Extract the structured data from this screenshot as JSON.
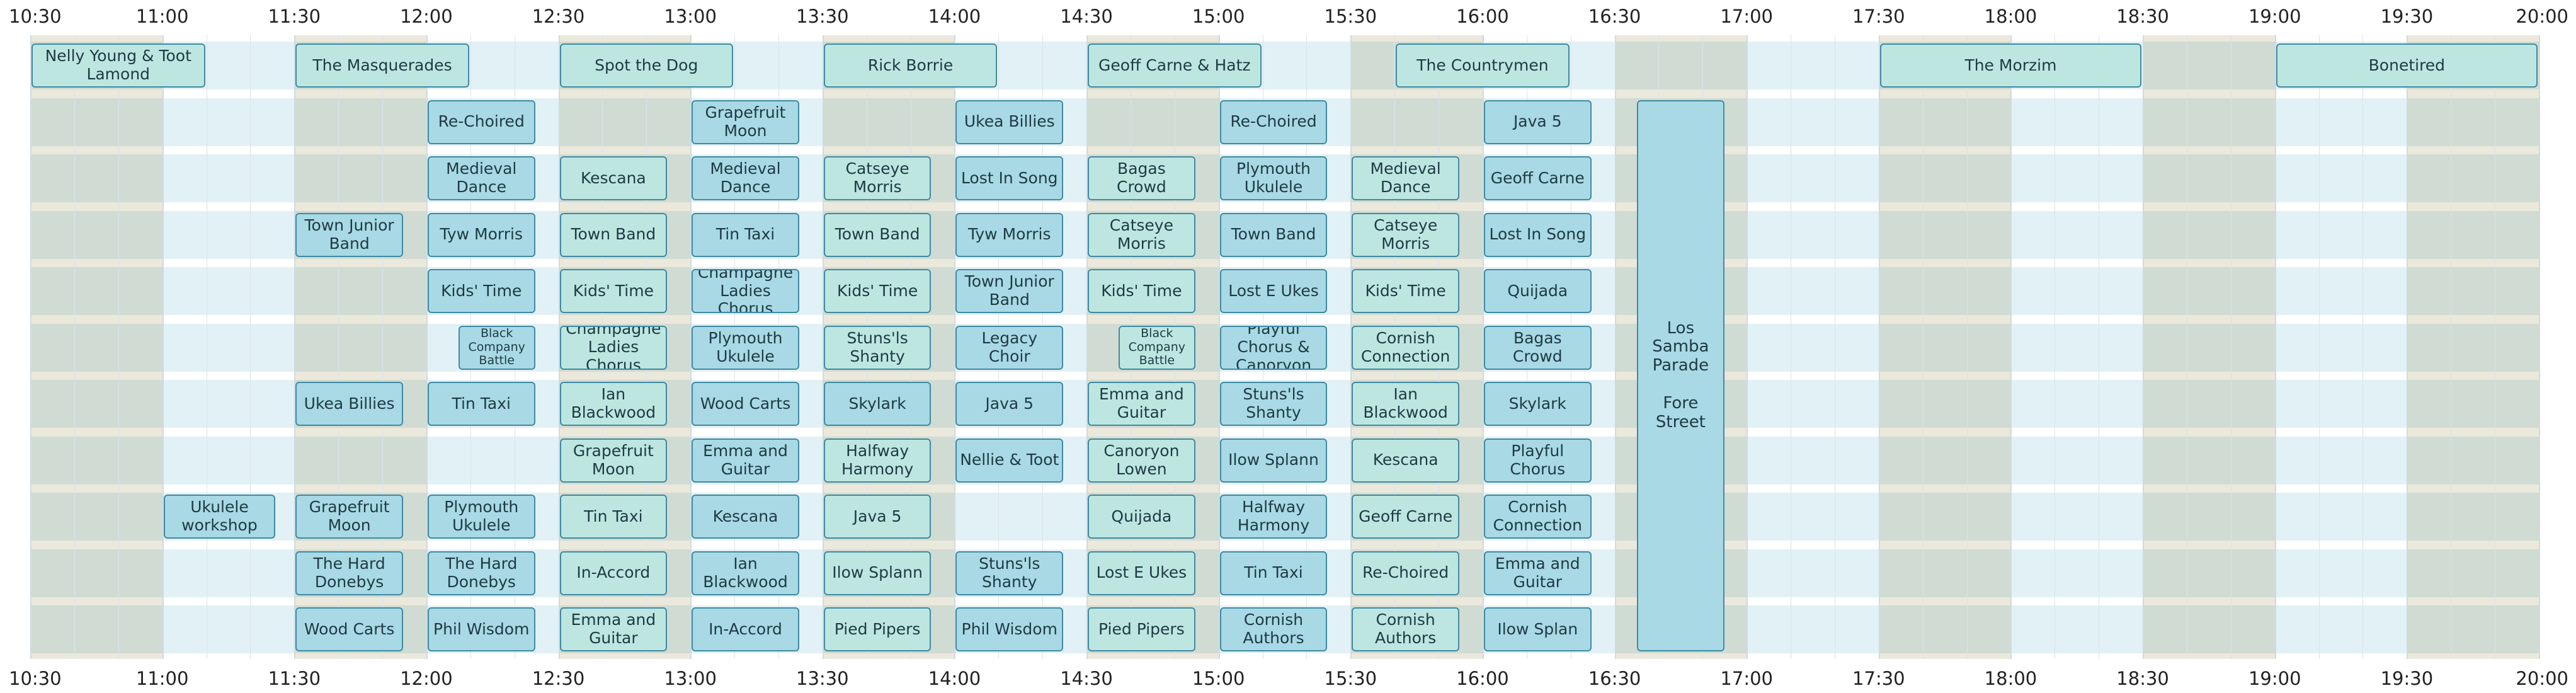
{
  "timeline": {
    "time_labels": [
      "10:30",
      "11:00",
      "11:30",
      "12:00",
      "12:30",
      "13:00",
      "13:30",
      "14:00",
      "14:30",
      "15:00",
      "15:30",
      "16:00",
      "16:30",
      "17:00",
      "17:30",
      "18:00",
      "18:30",
      "19:00",
      "19:30",
      "20:00"
    ],
    "start_hour": 10.5,
    "end_hour": 20.0,
    "colors": {
      "stripe": "#e2f1f5",
      "beige": "#ebe8dc",
      "event_blue": "#a8d9e4",
      "event_teal": "#bde6e0",
      "event_border": "#3f8aa2"
    },
    "beige_periods": [
      [
        "10:30",
        "11:00"
      ],
      [
        "11:30",
        "12:00"
      ],
      [
        "12:30",
        "13:00"
      ],
      [
        "13:30",
        "14:00"
      ],
      [
        "14:30",
        "15:00"
      ],
      [
        "15:30",
        "16:00"
      ],
      [
        "16:30",
        "17:00"
      ],
      [
        "17:30",
        "18:00"
      ],
      [
        "18:30",
        "19:00"
      ],
      [
        "19:30",
        "20:00"
      ]
    ]
  },
  "events": [
    {
      "title": "Nelly Young & Toot Lamond",
      "start": "10:30",
      "end": "11:10",
      "row": 0,
      "style": "teal"
    },
    {
      "title": "The Masquerades",
      "start": "11:30",
      "end": "12:10",
      "row": 0,
      "style": "teal"
    },
    {
      "title": "Spot the Dog",
      "start": "12:30",
      "end": "13:10",
      "row": 0,
      "style": "teal"
    },
    {
      "title": "Rick Borrie",
      "start": "13:30",
      "end": "14:10",
      "row": 0,
      "style": "teal"
    },
    {
      "title": "Geoff Carne & Hatz",
      "start": "14:30",
      "end": "15:10",
      "row": 0,
      "style": "teal"
    },
    {
      "title": "The Countrymen",
      "start": "15:40",
      "end": "16:20",
      "row": 0,
      "style": "teal"
    },
    {
      "title": "The Morzim",
      "start": "17:30",
      "end": "18:30",
      "row": 0,
      "style": "teal"
    },
    {
      "title": "Bonetired",
      "start": "19:00",
      "end": "20:00",
      "row": 0,
      "style": "teal"
    },
    {
      "title": "Re-Choired",
      "start": "12:00",
      "end": "12:25",
      "row": 1,
      "style": "blue"
    },
    {
      "title": "Grapefruit Moon",
      "start": "13:00",
      "end": "13:25",
      "row": 1,
      "style": "blue"
    },
    {
      "title": "Ukea Billies",
      "start": "14:00",
      "end": "14:25",
      "row": 1,
      "style": "blue"
    },
    {
      "title": "Re-Choired",
      "start": "15:00",
      "end": "15:25",
      "row": 1,
      "style": "blue"
    },
    {
      "title": "Java 5",
      "start": "16:00",
      "end": "16:25",
      "row": 1,
      "style": "blue"
    },
    {
      "title": "Medieval Dance",
      "start": "12:00",
      "end": "12:25",
      "row": 2,
      "style": "blue"
    },
    {
      "title": "Kescana",
      "start": "12:30",
      "end": "12:55",
      "row": 2,
      "style": "teal"
    },
    {
      "title": "Medieval Dance",
      "start": "13:00",
      "end": "13:25",
      "row": 2,
      "style": "blue"
    },
    {
      "title": "Catseye Morris",
      "start": "13:30",
      "end": "13:55",
      "row": 2,
      "style": "teal"
    },
    {
      "title": "Lost In Song",
      "start": "14:00",
      "end": "14:25",
      "row": 2,
      "style": "blue"
    },
    {
      "title": "Bagas Crowd",
      "start": "14:30",
      "end": "14:55",
      "row": 2,
      "style": "teal"
    },
    {
      "title": "Plymouth Ukulele",
      "start": "15:00",
      "end": "15:25",
      "row": 2,
      "style": "blue"
    },
    {
      "title": "Medieval Dance",
      "start": "15:30",
      "end": "15:55",
      "row": 2,
      "style": "teal"
    },
    {
      "title": "Geoff Carne",
      "start": "16:00",
      "end": "16:25",
      "row": 2,
      "style": "blue"
    },
    {
      "title": "Town Junior Band",
      "start": "11:30",
      "end": "11:55",
      "row": 3,
      "style": "blue"
    },
    {
      "title": "Tyw Morris",
      "start": "12:00",
      "end": "12:25",
      "row": 3,
      "style": "blue"
    },
    {
      "title": "Town Band",
      "start": "12:30",
      "end": "12:55",
      "row": 3,
      "style": "teal"
    },
    {
      "title": "Tin Taxi",
      "start": "13:00",
      "end": "13:25",
      "row": 3,
      "style": "blue"
    },
    {
      "title": "Town Band",
      "start": "13:30",
      "end": "13:55",
      "row": 3,
      "style": "teal"
    },
    {
      "title": "Tyw Morris",
      "start": "14:00",
      "end": "14:25",
      "row": 3,
      "style": "blue"
    },
    {
      "title": "Catseye Morris",
      "start": "14:30",
      "end": "14:55",
      "row": 3,
      "style": "teal"
    },
    {
      "title": "Town Band",
      "start": "15:00",
      "end": "15:25",
      "row": 3,
      "style": "blue"
    },
    {
      "title": "Catseye Morris",
      "start": "15:30",
      "end": "15:55",
      "row": 3,
      "style": "teal"
    },
    {
      "title": "Lost In Song",
      "start": "16:00",
      "end": "16:25",
      "row": 3,
      "style": "blue"
    },
    {
      "title": "Kids' Time",
      "start": "12:00",
      "end": "12:25",
      "row": 4,
      "style": "blue"
    },
    {
      "title": "Kids' Time",
      "start": "12:30",
      "end": "12:55",
      "row": 4,
      "style": "teal"
    },
    {
      "title": "Champagne Ladies Chorus",
      "start": "13:00",
      "end": "13:25",
      "row": 4,
      "style": "blue"
    },
    {
      "title": "Kids' Time",
      "start": "13:30",
      "end": "13:55",
      "row": 4,
      "style": "teal"
    },
    {
      "title": "Town Junior Band",
      "start": "14:00",
      "end": "14:25",
      "row": 4,
      "style": "blue"
    },
    {
      "title": "Kids' Time",
      "start": "14:30",
      "end": "14:55",
      "row": 4,
      "style": "teal"
    },
    {
      "title": "Lost E Ukes",
      "start": "15:00",
      "end": "15:25",
      "row": 4,
      "style": "blue"
    },
    {
      "title": "Kids' Time",
      "start": "15:30",
      "end": "15:55",
      "row": 4,
      "style": "teal"
    },
    {
      "title": "Quijada",
      "start": "16:00",
      "end": "16:25",
      "row": 4,
      "style": "blue"
    },
    {
      "title": "Black Company Battle",
      "start": "12:07",
      "end": "12:25",
      "row": 5,
      "style": "blue",
      "small": true
    },
    {
      "title": "Champagne Ladies Chorus",
      "start": "12:30",
      "end": "12:55",
      "row": 5,
      "style": "teal"
    },
    {
      "title": "Plymouth Ukulele",
      "start": "13:00",
      "end": "13:25",
      "row": 5,
      "style": "blue"
    },
    {
      "title": "Stuns'ls Shanty",
      "start": "13:30",
      "end": "13:55",
      "row": 5,
      "style": "teal"
    },
    {
      "title": "Legacy Choir",
      "start": "14:00",
      "end": "14:25",
      "row": 5,
      "style": "blue"
    },
    {
      "title": "Black Company Battle",
      "start": "14:37",
      "end": "14:55",
      "row": 5,
      "style": "teal",
      "small": true
    },
    {
      "title": "Playful Chorus & Canoryon",
      "start": "15:00",
      "end": "15:25",
      "row": 5,
      "style": "blue"
    },
    {
      "title": "Cornish Connection",
      "start": "15:30",
      "end": "15:55",
      "row": 5,
      "style": "teal"
    },
    {
      "title": "Bagas Crowd",
      "start": "16:00",
      "end": "16:25",
      "row": 5,
      "style": "blue"
    },
    {
      "title": "Ukea Billies",
      "start": "11:30",
      "end": "11:55",
      "row": 6,
      "style": "blue"
    },
    {
      "title": "Tin Taxi",
      "start": "12:00",
      "end": "12:25",
      "row": 6,
      "style": "blue"
    },
    {
      "title": "Ian Blackwood",
      "start": "12:30",
      "end": "12:55",
      "row": 6,
      "style": "teal"
    },
    {
      "title": "Wood Carts",
      "start": "13:00",
      "end": "13:25",
      "row": 6,
      "style": "blue"
    },
    {
      "title": "Skylark",
      "start": "13:30",
      "end": "13:55",
      "row": 6,
      "style": "blue"
    },
    {
      "title": "Java 5",
      "start": "14:00",
      "end": "14:25",
      "row": 6,
      "style": "blue"
    },
    {
      "title": "Emma and Guitar",
      "start": "14:30",
      "end": "14:55",
      "row": 6,
      "style": "teal"
    },
    {
      "title": "Stuns'ls Shanty",
      "start": "15:00",
      "end": "15:25",
      "row": 6,
      "style": "blue"
    },
    {
      "title": "Ian Blackwood",
      "start": "15:30",
      "end": "15:55",
      "row": 6,
      "style": "teal"
    },
    {
      "title": "Skylark",
      "start": "16:00",
      "end": "16:25",
      "row": 6,
      "style": "blue"
    },
    {
      "title": "Grapefruit Moon",
      "start": "12:30",
      "end": "12:55",
      "row": 7,
      "style": "teal"
    },
    {
      "title": "Emma and Guitar",
      "start": "13:00",
      "end": "13:25",
      "row": 7,
      "style": "blue"
    },
    {
      "title": "Halfway Harmony",
      "start": "13:30",
      "end": "13:55",
      "row": 7,
      "style": "teal"
    },
    {
      "title": "Nellie & Toot",
      "start": "14:00",
      "end": "14:25",
      "row": 7,
      "style": "blue"
    },
    {
      "title": "Canoryon Lowen",
      "start": "14:30",
      "end": "14:55",
      "row": 7,
      "style": "teal"
    },
    {
      "title": "Ilow Splann",
      "start": "15:00",
      "end": "15:25",
      "row": 7,
      "style": "blue"
    },
    {
      "title": "Kescana",
      "start": "15:30",
      "end": "15:55",
      "row": 7,
      "style": "teal"
    },
    {
      "title": "Playful Chorus",
      "start": "16:00",
      "end": "16:25",
      "row": 7,
      "style": "blue"
    },
    {
      "title": "Ukulele workshop",
      "start": "11:00",
      "end": "11:26",
      "row": 8,
      "style": "blue"
    },
    {
      "title": "Grapefruit Moon",
      "start": "11:30",
      "end": "11:55",
      "row": 8,
      "style": "blue"
    },
    {
      "title": "Plymouth Ukulele",
      "start": "12:00",
      "end": "12:25",
      "row": 8,
      "style": "blue"
    },
    {
      "title": "Tin Taxi",
      "start": "12:30",
      "end": "12:55",
      "row": 8,
      "style": "teal"
    },
    {
      "title": "Kescana",
      "start": "13:00",
      "end": "13:25",
      "row": 8,
      "style": "blue"
    },
    {
      "title": "Java 5",
      "start": "13:30",
      "end": "13:55",
      "row": 8,
      "style": "teal"
    },
    {
      "title": "Quijada",
      "start": "14:30",
      "end": "14:55",
      "row": 8,
      "style": "teal"
    },
    {
      "title": "Halfway Harmony",
      "start": "15:00",
      "end": "15:25",
      "row": 8,
      "style": "blue"
    },
    {
      "title": "Geoff Carne",
      "start": "15:30",
      "end": "15:55",
      "row": 8,
      "style": "teal"
    },
    {
      "title": "Cornish Connection",
      "start": "16:00",
      "end": "16:25",
      "row": 8,
      "style": "blue"
    },
    {
      "title": "The Hard Donebys",
      "start": "11:30",
      "end": "11:55",
      "row": 9,
      "style": "blue"
    },
    {
      "title": "The Hard Donebys",
      "start": "12:00",
      "end": "12:25",
      "row": 9,
      "style": "blue"
    },
    {
      "title": "In-Accord",
      "start": "12:30",
      "end": "12:55",
      "row": 9,
      "style": "teal"
    },
    {
      "title": "Ian Blackwood",
      "start": "13:00",
      "end": "13:25",
      "row": 9,
      "style": "blue"
    },
    {
      "title": "Ilow Splann",
      "start": "13:30",
      "end": "13:55",
      "row": 9,
      "style": "teal"
    },
    {
      "title": "Stuns'ls Shanty",
      "start": "14:00",
      "end": "14:25",
      "row": 9,
      "style": "blue"
    },
    {
      "title": "Lost E Ukes",
      "start": "14:30",
      "end": "14:55",
      "row": 9,
      "style": "teal"
    },
    {
      "title": "Tin Taxi",
      "start": "15:00",
      "end": "15:25",
      "row": 9,
      "style": "blue"
    },
    {
      "title": "Re-Choired",
      "start": "15:30",
      "end": "15:55",
      "row": 9,
      "style": "teal"
    },
    {
      "title": "Emma and Guitar",
      "start": "16:00",
      "end": "16:25",
      "row": 9,
      "style": "blue"
    },
    {
      "title": "Wood Carts",
      "start": "11:30",
      "end": "11:55",
      "row": 10,
      "style": "blue"
    },
    {
      "title": "Phil Wisdom",
      "start": "12:00",
      "end": "12:25",
      "row": 10,
      "style": "blue"
    },
    {
      "title": "Emma and Guitar",
      "start": "12:30",
      "end": "12:55",
      "row": 10,
      "style": "teal"
    },
    {
      "title": "In-Accord",
      "start": "13:00",
      "end": "13:25",
      "row": 10,
      "style": "blue"
    },
    {
      "title": "Pied Pipers",
      "start": "13:30",
      "end": "13:55",
      "row": 10,
      "style": "teal"
    },
    {
      "title": "Phil Wisdom",
      "start": "14:00",
      "end": "14:25",
      "row": 10,
      "style": "blue"
    },
    {
      "title": "Pied Pipers",
      "start": "14:30",
      "end": "14:55",
      "row": 10,
      "style": "teal"
    },
    {
      "title": "Cornish Authors",
      "start": "15:00",
      "end": "15:25",
      "row": 10,
      "style": "blue"
    },
    {
      "title": "Cornish Authors",
      "start": "15:30",
      "end": "15:55",
      "row": 10,
      "style": "teal"
    },
    {
      "title": "Ilow Splan",
      "start": "16:00",
      "end": "16:25",
      "row": 10,
      "style": "blue"
    }
  ],
  "parade": {
    "title": "Los\nSamba\nParade\n\nFore\nStreet",
    "start": "16:35",
    "end": "16:55",
    "row_from": 1,
    "row_to": 10
  }
}
